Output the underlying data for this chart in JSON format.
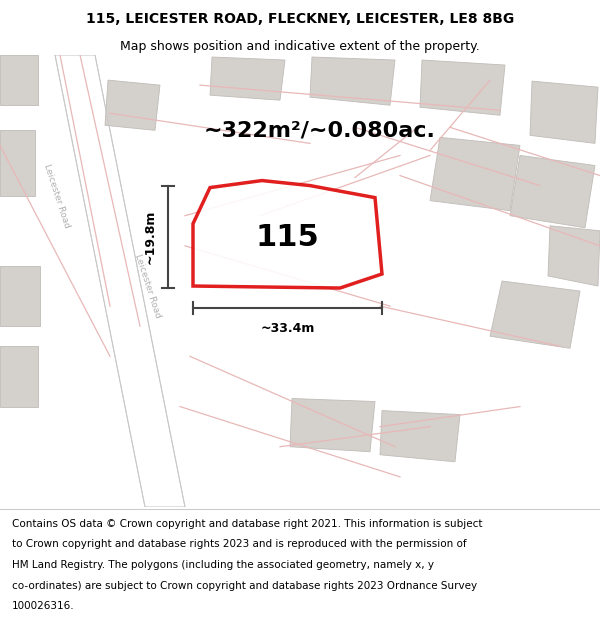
{
  "title_line1": "115, LEICESTER ROAD, FLECKNEY, LEICESTER, LE8 8BG",
  "title_line2": "Map shows position and indicative extent of the property.",
  "footer_lines": [
    "Contains OS data © Crown copyright and database right 2021. This information is subject",
    "to Crown copyright and database rights 2023 and is reproduced with the permission of",
    "HM Land Registry. The polygons (including the associated geometry, namely x, y",
    "co-ordinates) are subject to Crown copyright and database rights 2023 Ordnance Survey",
    "100026316."
  ],
  "area_text": "~322m²/~0.080ac.",
  "number_label": "115",
  "dim_width": "~33.4m",
  "dim_height": "~19.8m",
  "map_bg": "#f2efec",
  "road_color_main": "#c8c8c8",
  "road_color_light": "#e8b8b8",
  "building_color": "#d4d0cc",
  "building_edge": "#c0bcb8",
  "highlight_color": "#dd0000",
  "highlight_fill": "#ffffff",
  "dim_line_color": "#444444",
  "road_text_color": "#b0b0b0",
  "title_fontsize": 10,
  "subtitle_fontsize": 9,
  "area_fontsize": 16,
  "number_fontsize": 22,
  "footer_fontsize": 7.5
}
